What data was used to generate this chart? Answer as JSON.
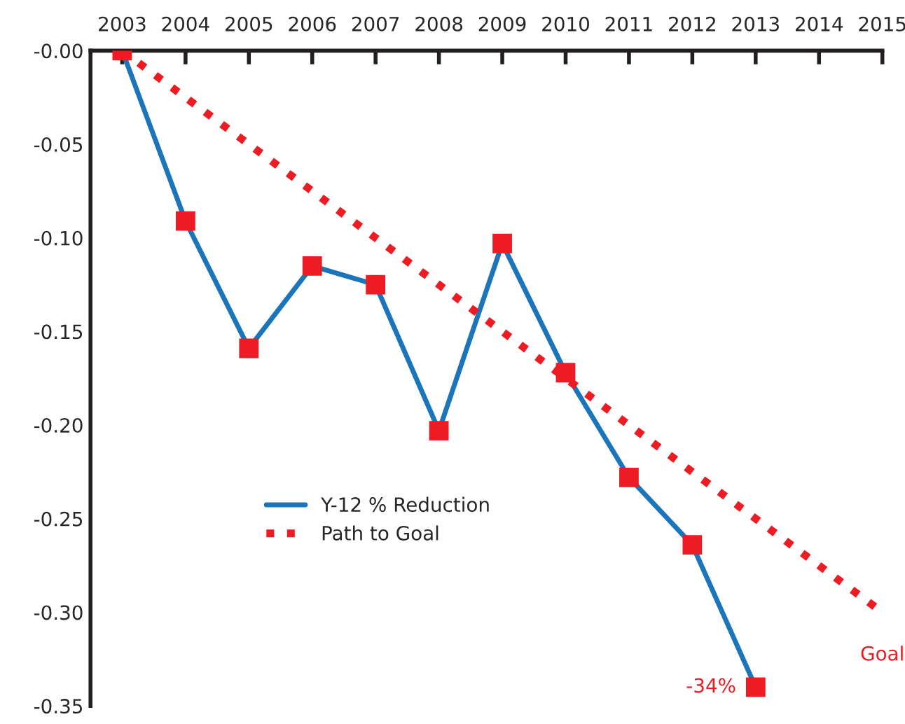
{
  "chart_data": {
    "type": "line",
    "x": [
      2003,
      2004,
      2005,
      2006,
      2007,
      2008,
      2009,
      2010,
      2011,
      2012,
      2013
    ],
    "series": [
      {
        "name": "Y-12 % Reduction",
        "color": "#1b75bb",
        "colors": [
          "#ed1c24",
          "#ed1c24",
          "#ed1c24",
          "#ed1c24",
          "#ed1c24",
          "#ed1c24",
          "#ed1c24",
          "#ed1c24",
          "#ed1c24",
          "#ed1c24",
          "#ed1c24"
        ],
        "marker": "square",
        "line_style": "solid",
        "values": [
          0,
          -0.091,
          -0.159,
          -0.115,
          -0.125,
          -0.203,
          -0.103,
          -0.172,
          -0.228,
          -0.264,
          -0.34
        ],
        "value_labels": [
          null,
          null,
          null,
          null,
          null,
          null,
          null,
          null,
          null,
          null,
          "-34%"
        ]
      },
      {
        "name": "Path to Goal",
        "color": "#ed1c24",
        "marker": "none",
        "line_style": "dotted",
        "x": [
          2003,
          2015
        ],
        "values": [
          0,
          -0.3
        ]
      }
    ],
    "annotations": [
      {
        "text": "Goal",
        "x": 2015,
        "y": -0.3
      }
    ],
    "xlim": [
      2002.5,
      2015
    ],
    "xticks": [
      2003,
      2004,
      2005,
      2006,
      2007,
      2008,
      2009,
      2010,
      2011,
      2012,
      2013,
      2014,
      2015
    ],
    "ylim": [
      -0.35,
      0
    ],
    "yticks": [
      {
        "value": 0,
        "label": "-0.00"
      },
      {
        "value": -0.05,
        "label": "-0.05"
      },
      {
        "value": -0.1,
        "label": "-0.10"
      },
      {
        "value": -0.15,
        "label": "-0.15"
      },
      {
        "value": -0.2,
        "label": "-0.20"
      },
      {
        "value": -0.25,
        "label": "-0.25"
      },
      {
        "value": -0.3,
        "label": "-0.30"
      },
      {
        "value": -0.35,
        "label": "-0.35"
      }
    ],
    "grid": false,
    "legend": "lower left"
  }
}
